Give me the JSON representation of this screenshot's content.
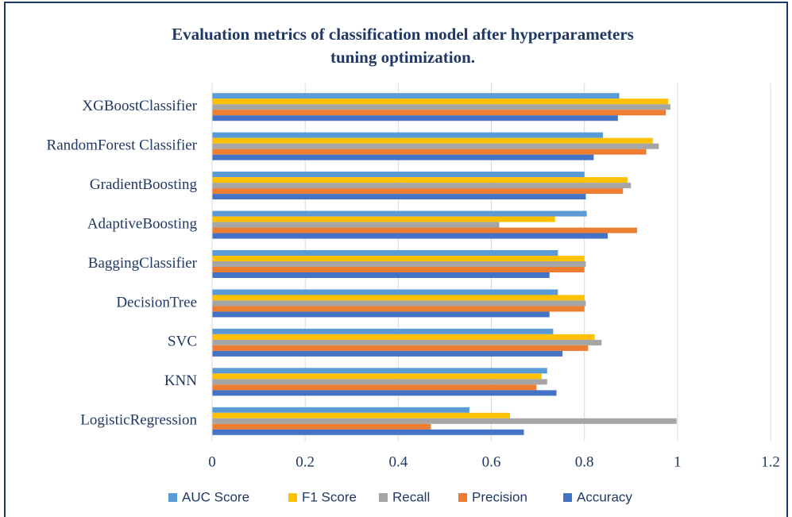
{
  "chart_data": {
    "type": "barh",
    "title": [
      "Evaluation metrics of classification model after hyperparameters",
      "tuning optimization."
    ],
    "categories": [
      "XGBoostClassifier",
      "RandomForest Classifier",
      "GradientBoosting",
      "AdaptiveBoosting",
      "BaggingClassifier",
      "DecisionTree",
      "SVC",
      "KNN",
      "LogisticRegression"
    ],
    "series": [
      {
        "name": "AUC Score",
        "color": "#5b9bd5",
        "values": [
          0.875,
          0.84,
          0.8,
          0.805,
          0.743,
          0.743,
          0.733,
          0.72,
          0.553
        ]
      },
      {
        "name": "F1 Score",
        "color": "#ffc000",
        "values": [
          0.98,
          0.947,
          0.893,
          0.737,
          0.8,
          0.8,
          0.822,
          0.708,
          0.64
        ]
      },
      {
        "name": "Recall",
        "color": "#a5a5a5",
        "values": [
          0.985,
          0.96,
          0.9,
          0.617,
          0.803,
          0.803,
          0.837,
          0.72,
          0.998
        ]
      },
      {
        "name": "Precision",
        "color": "#ed7d31",
        "values": [
          0.975,
          0.933,
          0.883,
          0.913,
          0.8,
          0.8,
          0.808,
          0.697,
          0.47
        ]
      },
      {
        "name": "Accuracy",
        "color": "#4472c4",
        "values": [
          0.872,
          0.82,
          0.803,
          0.85,
          0.725,
          0.725,
          0.753,
          0.74,
          0.67
        ]
      }
    ],
    "xlim": [
      0,
      1.2
    ],
    "xticks": [
      0,
      0.2,
      0.4,
      0.6,
      0.8,
      1,
      1.2
    ],
    "grid": true,
    "legend": "bottom"
  }
}
